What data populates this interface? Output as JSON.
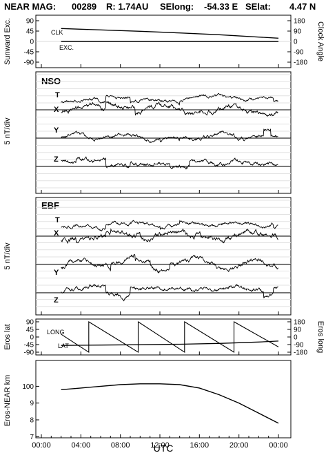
{
  "header": {
    "mission": "NEAR MAG:",
    "doy": "00289",
    "range": "R: 1.74AU",
    "selong_label": "SElong:",
    "selong_value": "-54.33 E",
    "selat_label": "SElat:",
    "selat_value": "4.47 N"
  },
  "chart_data": [
    {
      "type": "line",
      "panel": "sunward-clock",
      "ylabel_left": "Sunward Exc.",
      "ylabel_right": "Clock Angle",
      "yticks_left": [
        "90",
        "45",
        "0",
        "-45",
        "-90"
      ],
      "yticks_right": [
        "180",
        "90",
        "0",
        "-90",
        "-180"
      ],
      "ylim": [
        -90,
        90
      ],
      "series": [
        {
          "name": "CLK",
          "x": [
            2,
            6,
            10,
            14,
            18,
            22,
            24
          ],
          "values": [
            56,
            50,
            44,
            37,
            29,
            19,
            14
          ]
        },
        {
          "name": "EXC.",
          "x": [
            2,
            24
          ],
          "values": [
            0,
            0
          ]
        }
      ]
    },
    {
      "type": "line",
      "panel": "nso",
      "title": "NSO",
      "ylabel": "5 nT/div",
      "series": [
        {
          "name": "T"
        },
        {
          "name": "X"
        },
        {
          "name": "Y"
        },
        {
          "name": "Z"
        }
      ]
    },
    {
      "type": "line",
      "panel": "ebf",
      "title": "EBF",
      "ylabel": "5 nT/div",
      "series": [
        {
          "name": "T"
        },
        {
          "name": "X"
        },
        {
          "name": "Y"
        },
        {
          "name": "Z"
        }
      ]
    },
    {
      "type": "line",
      "panel": "eros-lat-long",
      "ylabel_left": "Eros lat",
      "ylabel_right": "Eros long",
      "yticks_left": [
        "90",
        "45",
        "0",
        "-45",
        "-90"
      ],
      "yticks_right": [
        "180",
        "90",
        "0",
        "-90",
        "-180"
      ],
      "ylim": [
        -90,
        90
      ],
      "series": [
        {
          "name": "LAT",
          "x": [
            2,
            6,
            10,
            14,
            18,
            22,
            24
          ],
          "values": [
            -50,
            -48,
            -46,
            -43,
            -38,
            -30,
            -24
          ]
        },
        {
          "name": "LONG",
          "x": [
            2,
            4.8,
            4.8,
            9.8,
            9.8,
            14.5,
            14.5,
            19.5,
            19.5,
            24
          ],
          "values": [
            16,
            -90,
            90,
            -90,
            90,
            -90,
            90,
            -90,
            90,
            -59
          ]
        }
      ]
    },
    {
      "type": "line",
      "panel": "eros-near-km",
      "ylabel": "Eros-NEAR km",
      "yticks": [
        "100",
        "9",
        "8",
        "7"
      ],
      "series": [
        {
          "name": "",
          "x": [
            2,
            4,
            6,
            8,
            10,
            12,
            14,
            16,
            18,
            20,
            22,
            24
          ],
          "values": [
            95,
            96,
            97,
            98,
            98.5,
            98.5,
            98,
            96,
            92,
            87,
            81,
            75
          ]
        }
      ]
    }
  ],
  "x_axis": {
    "label": "UTC",
    "ticks": [
      "00:00",
      "04:00",
      "08:00",
      "12:00",
      "16:00",
      "20:00",
      "00:00"
    ],
    "range_hours": [
      0,
      24
    ]
  }
}
